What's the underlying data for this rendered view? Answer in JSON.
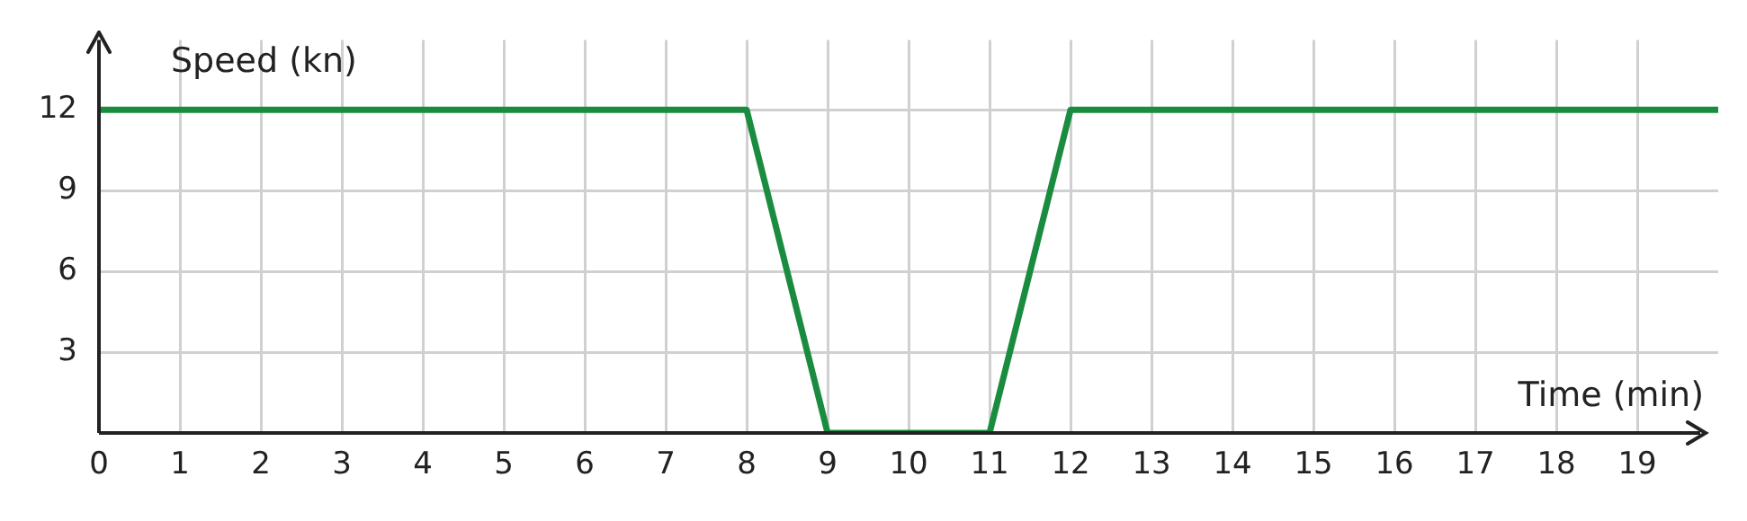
{
  "chart_data": {
    "type": "line",
    "xlabel": "Time (min)",
    "ylabel": "Speed (kn)",
    "x": [
      0,
      8,
      9,
      11,
      12,
      20
    ],
    "series": [
      {
        "color": "#1a8c3f",
        "values": [
          12,
          12,
          0,
          0,
          12,
          12
        ]
      }
    ],
    "xlim": [
      0,
      20
    ],
    "xticks": [
      0,
      1,
      2,
      3,
      4,
      5,
      6,
      7,
      8,
      9,
      10,
      11,
      12,
      13,
      14,
      15,
      16,
      17,
      18,
      19
    ],
    "ylim": [
      0,
      14.6
    ],
    "yticks": [
      3,
      6,
      9,
      12
    ],
    "grid": true,
    "legend": false,
    "marker": "none",
    "line_style": "solid"
  }
}
